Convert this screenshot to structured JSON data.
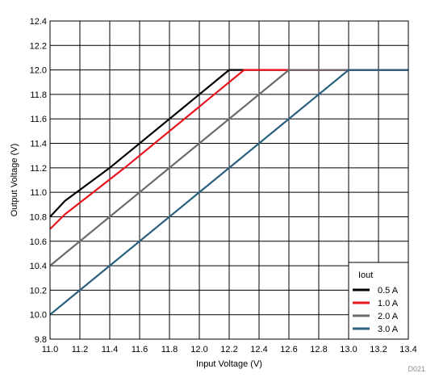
{
  "chart_data": {
    "type": "line",
    "title": "",
    "xlabel": "Input Voltage (V)",
    "ylabel": "Output Voltage (V)",
    "xlim": [
      11.0,
      13.4
    ],
    "ylim": [
      9.8,
      12.4
    ],
    "x_ticks": [
      "11.0",
      "11.2",
      "11.4",
      "11.6",
      "11.8",
      "12.0",
      "12.2",
      "12.4",
      "12.6",
      "12.8",
      "13.0",
      "13.2",
      "13.4"
    ],
    "y_ticks": [
      "9.8",
      "10.0",
      "10.2",
      "10.4",
      "10.6",
      "10.8",
      "11.0",
      "11.2",
      "11.4",
      "11.6",
      "11.8",
      "12.0",
      "12.2",
      "12.4"
    ],
    "grid": true,
    "legend": {
      "title": "Iout",
      "placement": "bottom-right"
    },
    "series": [
      {
        "name": "0.5 A",
        "color": "#000000",
        "x": [
          11.0,
          11.1,
          11.4,
          11.9,
          12.2,
          13.4
        ],
        "y": [
          10.8,
          10.93,
          11.2,
          11.7,
          12.0,
          12.0
        ]
      },
      {
        "name": "1.0 A",
        "color": "#e8141c",
        "x": [
          11.0,
          11.1,
          11.5,
          12.0,
          12.3,
          13.4
        ],
        "y": [
          10.7,
          10.82,
          11.2,
          11.7,
          12.0,
          12.0
        ]
      },
      {
        "name": "2.0 A",
        "color": "#6b6b6b",
        "x": [
          11.0,
          11.1,
          12.6,
          13.4
        ],
        "y": [
          10.4,
          10.5,
          12.0,
          12.0
        ]
      },
      {
        "name": "3.0 A",
        "color": "#2b5f7f",
        "x": [
          11.0,
          11.1,
          13.0,
          13.4
        ],
        "y": [
          10.0,
          10.1,
          12.0,
          12.0
        ]
      }
    ],
    "watermark": "D021"
  }
}
